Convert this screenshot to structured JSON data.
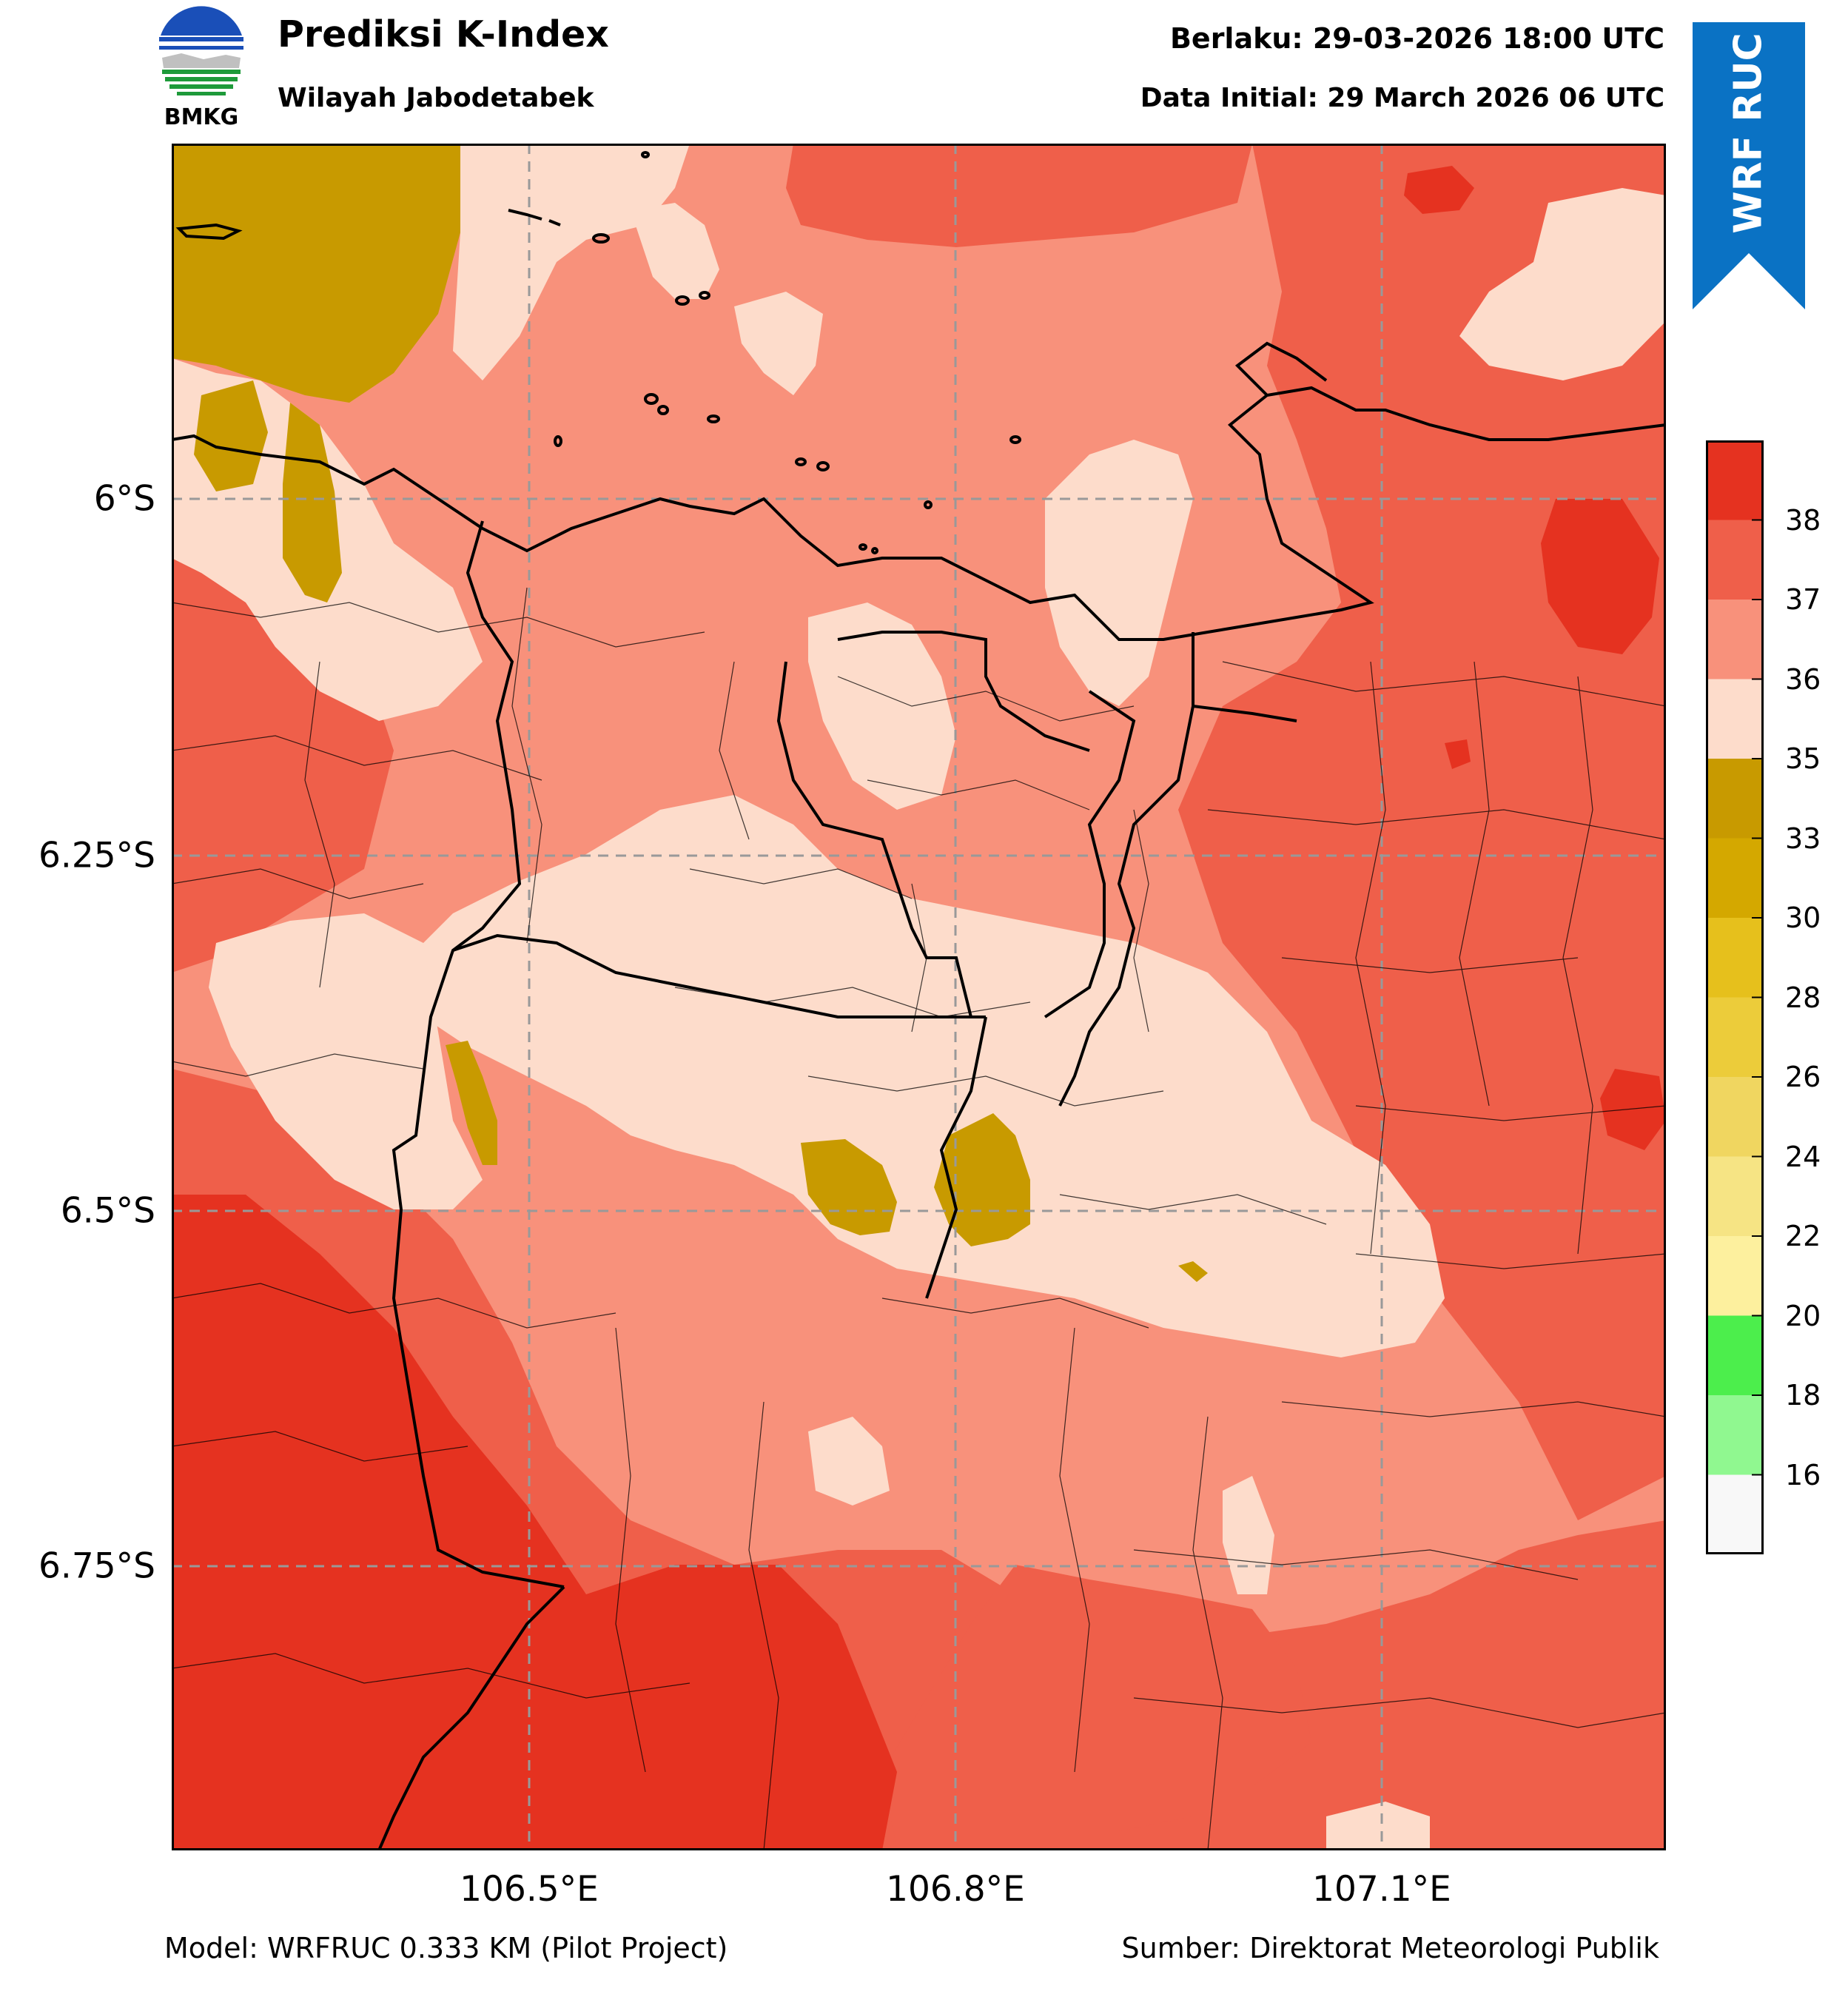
{
  "header": {
    "logo_text": "BMKG",
    "title": "Prediksi K-Index",
    "subtitle": "Wilayah Jabodetabek",
    "valid_time": "Berlaku: 29-03-2026 18:00 UTC",
    "initial_time": "Data Initial: 29 March 2026 06 UTC",
    "ribbon_label": "WRF RUC",
    "ribbon_color": "#0a72c4"
  },
  "map": {
    "x_ticks": [
      "106.5°E",
      "106.8°E",
      "107.1°E"
    ],
    "y_ticks": [
      "6°S",
      "6.25°S",
      "6.5°S",
      "6.75°S"
    ]
  },
  "colorbar": {
    "labels": [
      "38",
      "37",
      "36",
      "35",
      "33",
      "30",
      "28",
      "26",
      "24",
      "22",
      "20",
      "18",
      "16"
    ],
    "colors": [
      "#e53220",
      "#ef5f4a",
      "#f8917b",
      "#fddccb",
      "#c89a00",
      "#d4a800",
      "#e6c01c",
      "#eccc3a",
      "#f0d660",
      "#f6e484",
      "#fdf09e",
      "#4cee4c",
      "#90f890",
      "#f8f8f8"
    ]
  },
  "footer": {
    "model": "Model: WRFRUC 0.333 KM (Pilot Project)",
    "source": "Sumber: Direktorat Meteorologi Publik"
  }
}
